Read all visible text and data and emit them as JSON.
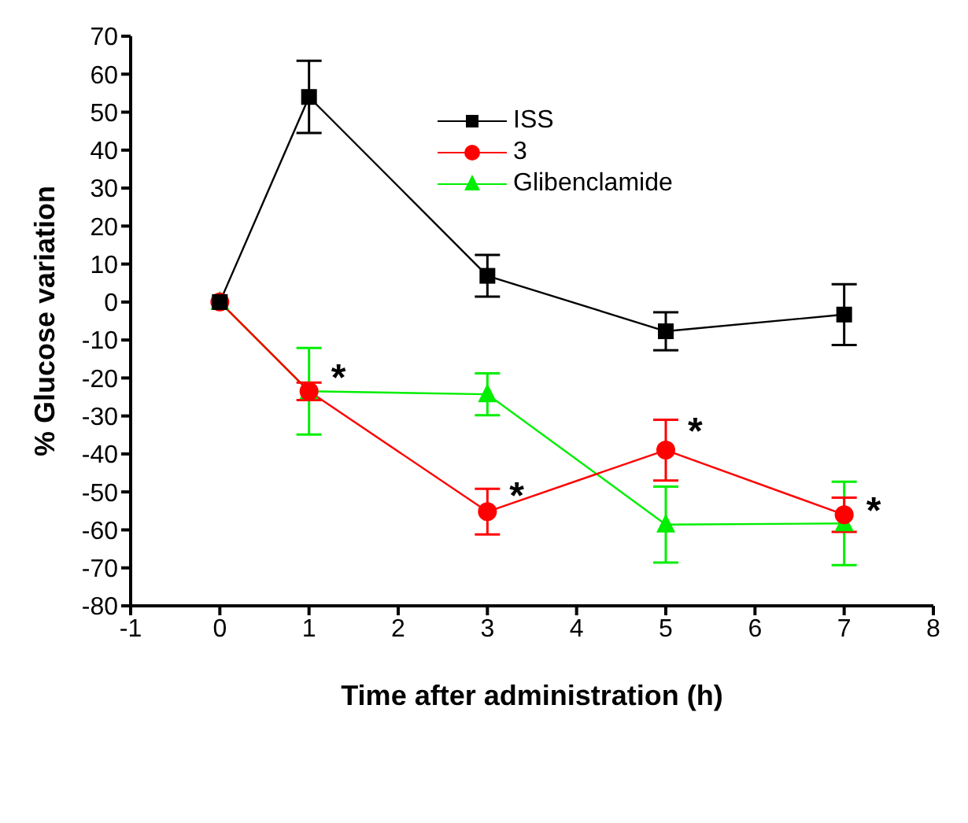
{
  "chart_data": {
    "type": "line",
    "xlabel": "Time after administration (h)",
    "ylabel": "% Glucose variation",
    "x": [
      0,
      1,
      3,
      5,
      7
    ],
    "xlim": [
      -1,
      8
    ],
    "xticks": [
      -1,
      0,
      1,
      2,
      3,
      4,
      5,
      6,
      7,
      8
    ],
    "ylim": [
      -80,
      70
    ],
    "yticks": [
      -80,
      -70,
      -60,
      -50,
      -40,
      -30,
      -20,
      -10,
      0,
      10,
      20,
      30,
      40,
      50,
      60,
      70
    ],
    "series": [
      {
        "name": "ISS",
        "color": "#000000",
        "marker": "square",
        "values": [
          0,
          54,
          6.9,
          -7.7,
          -3.3
        ],
        "errors": [
          null,
          9.5,
          5.5,
          5,
          8
        ]
      },
      {
        "name": "3",
        "color": "#ff0000",
        "marker": "circle",
        "values": [
          0,
          -23.5,
          -55.2,
          -39,
          -56
        ],
        "errors": [
          null,
          2.3,
          6,
          8,
          4.5
        ]
      },
      {
        "name": "Glibenclamide",
        "color": "#00ee00",
        "marker": "triangle",
        "values": [
          0,
          -23.5,
          -24.3,
          -58.6,
          -58.3
        ],
        "errors": [
          null,
          11.4,
          5.5,
          10,
          11
        ]
      }
    ],
    "annotations": [
      {
        "text": "*",
        "x": 1,
        "y": -20
      },
      {
        "text": "*",
        "x": 3,
        "y": -51
      },
      {
        "text": "*",
        "x": 5,
        "y": -34
      },
      {
        "text": "*",
        "x": 7,
        "y": -55
      }
    ],
    "legend": "top right",
    "grid": false
  }
}
